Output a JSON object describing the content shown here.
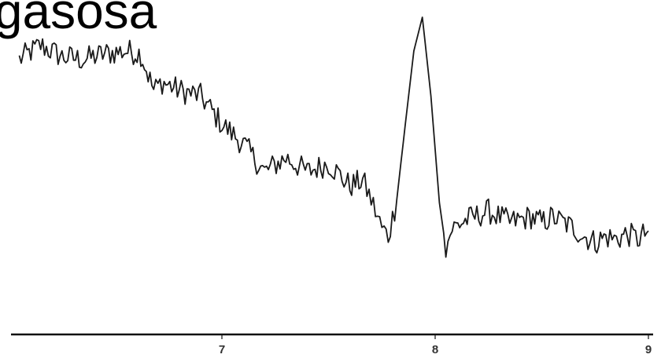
{
  "chart_data": {
    "type": "line",
    "title": "grafia gasosa",
    "xlabel": "",
    "ylabel": "",
    "xlim": [
      6.0,
      9.0
    ],
    "ylim": [
      0,
      1
    ],
    "grid": false,
    "x_ticks": [
      {
        "value": 7,
        "label": "7"
      },
      {
        "value": 8,
        "label": "8"
      },
      {
        "value": 9,
        "label": "9"
      }
    ],
    "series": [
      {
        "x": [
          6.05,
          6.15,
          6.25,
          6.35,
          6.45,
          6.55,
          6.62,
          6.68,
          6.72,
          6.8,
          6.9,
          7.0,
          7.1,
          7.2,
          7.3,
          7.4,
          7.5,
          7.6,
          7.66,
          7.7,
          7.75,
          7.78,
          7.82,
          7.86,
          7.9,
          7.94,
          7.98,
          8.02,
          8.05,
          8.08,
          8.15,
          8.25,
          8.35,
          8.45,
          8.5,
          8.55,
          8.6,
          8.65,
          8.7,
          8.75,
          8.8,
          8.85,
          8.9,
          8.95,
          9.0
        ],
        "y": [
          0.85,
          0.9,
          0.86,
          0.85,
          0.87,
          0.88,
          0.87,
          0.74,
          0.77,
          0.74,
          0.72,
          0.62,
          0.55,
          0.45,
          0.5,
          0.45,
          0.48,
          0.4,
          0.42,
          0.35,
          0.25,
          0.22,
          0.35,
          0.62,
          0.88,
          1.0,
          0.72,
          0.34,
          0.18,
          0.25,
          0.28,
          0.31,
          0.27,
          0.29,
          0.27,
          0.29,
          0.27,
          0.25,
          0.22,
          0.2,
          0.22,
          0.21,
          0.23,
          0.21,
          0.24
        ]
      }
    ]
  }
}
